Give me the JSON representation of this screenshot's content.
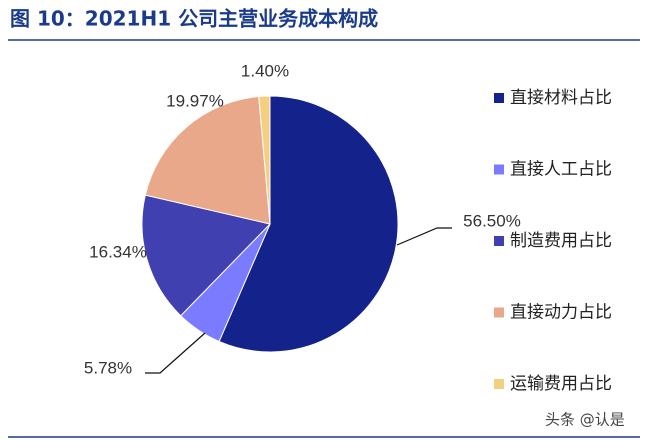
{
  "chart_data": {
    "type": "pie",
    "title": "图 10：2021H1 公司主营业务成本构成",
    "categories": [
      "直接材料占比",
      "直接人工占比",
      "制造费用占比",
      "直接动力占比",
      "运输费用占比"
    ],
    "values": [
      56.5,
      5.78,
      16.34,
      19.97,
      1.4
    ],
    "value_labels": [
      "56.50%",
      "5.78%",
      "16.34%",
      "19.97%",
      "1.40%"
    ],
    "colors": [
      "#14238c",
      "#7b7bff",
      "#4040b0",
      "#e9a88a",
      "#f5cf80"
    ],
    "legend": "right",
    "watermark": "头条 @认是"
  }
}
